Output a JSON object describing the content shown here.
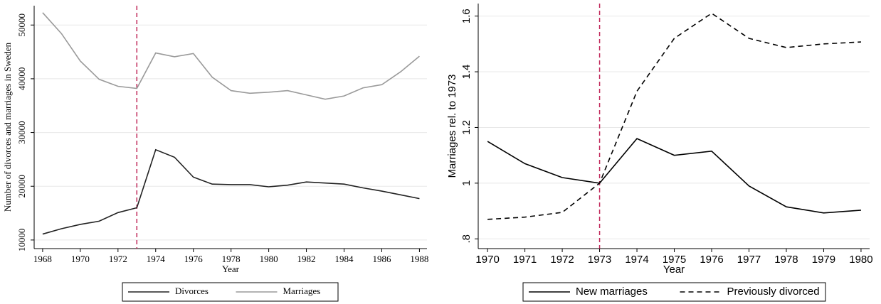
{
  "chart_data": [
    {
      "type": "line",
      "x_label": "Year",
      "y_label": "Number of divorces and marriages in Sweden",
      "x": [
        1968,
        1969,
        1970,
        1971,
        1972,
        1973,
        1974,
        1975,
        1976,
        1977,
        1978,
        1979,
        1980,
        1981,
        1982,
        1983,
        1984,
        1985,
        1986,
        1987,
        1988
      ],
      "series": [
        {
          "name": "Divorces",
          "color": "#222222",
          "dashed": false,
          "values": [
            11100,
            12100,
            12900,
            13500,
            15100,
            16000,
            26800,
            25400,
            21700,
            20400,
            20300,
            20300,
            19900,
            20200,
            20800,
            20600,
            20400,
            19700,
            19100,
            18400,
            17700
          ]
        },
        {
          "name": "Marriages",
          "color": "#9a9a9a",
          "dashed": false,
          "values": [
            52300,
            48400,
            43300,
            39900,
            38600,
            38200,
            44800,
            44100,
            44700,
            40300,
            37800,
            37300,
            37500,
            37800,
            37000,
            36200,
            36800,
            38300,
            38900,
            41300,
            44200
          ]
        }
      ],
      "xlim": [
        1967.55,
        1988.4
      ],
      "xticks": [
        1968,
        1970,
        1972,
        1974,
        1976,
        1978,
        1980,
        1982,
        1984,
        1986,
        1988
      ],
      "ylim": [
        8400,
        53600
      ],
      "yticks": [
        10000,
        20000,
        30000,
        40000,
        50000
      ],
      "grid": true,
      "vline": 1973,
      "vline_color": "#c0285a",
      "legend": "bottom"
    },
    {
      "type": "line",
      "x_label": "Year",
      "y_label": "Marriages rel. to 1973",
      "x": [
        1970,
        1971,
        1972,
        1973,
        1974,
        1975,
        1976,
        1977,
        1978,
        1979,
        1980
      ],
      "series": [
        {
          "name": "New marriages",
          "color": "#000000",
          "dashed": false,
          "values": [
            1.15,
            1.07,
            1.02,
            1.0,
            1.16,
            1.1,
            1.115,
            0.99,
            0.915,
            0.893,
            0.903
          ]
        },
        {
          "name": "Previously divorced",
          "color": "#000000",
          "dashed": true,
          "values": [
            0.87,
            0.878,
            0.895,
            1.0,
            1.33,
            1.52,
            1.61,
            1.52,
            1.487,
            1.5,
            1.507
          ]
        }
      ],
      "xlim": [
        1969.75,
        1980.23
      ],
      "xticks": [
        1970,
        1971,
        1972,
        1973,
        1974,
        1975,
        1976,
        1977,
        1978,
        1979,
        1980
      ],
      "ylim": [
        0.765,
        1.645
      ],
      "yticks": [
        {
          "value": 0.8,
          "label": ".8"
        },
        1,
        1.2,
        1.4,
        1.6
      ],
      "grid": true,
      "vline": 1973,
      "vline_color": "#c0285a",
      "legend": "bottom"
    }
  ]
}
